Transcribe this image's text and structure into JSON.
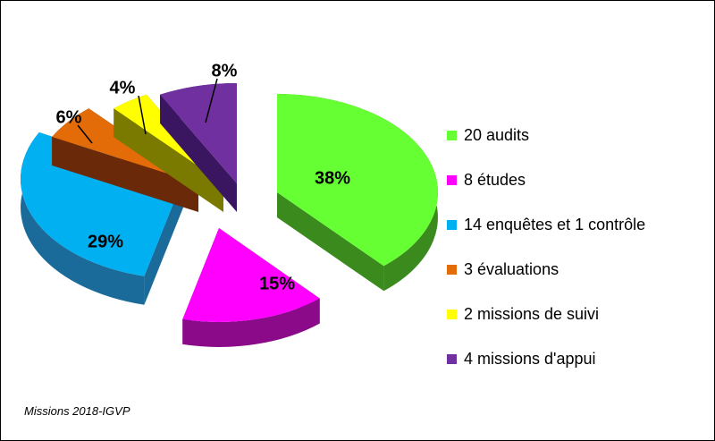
{
  "chart_data": {
    "type": "pie",
    "style": "3d-exploded",
    "title": "",
    "slices": [
      {
        "label": "20 audits",
        "value": 20,
        "percent_label": "38%",
        "color": "#66ff33",
        "side_color": "#3a8a1e"
      },
      {
        "label": "8 études",
        "value": 8,
        "percent_label": "15%",
        "color": "#ff00ff",
        "side_color": "#8a0a8a"
      },
      {
        "label": "14 enquêtes et 1 contrôle",
        "value": 15,
        "percent_label": "29%",
        "color": "#00b0f0",
        "side_color": "#1a6a9a"
      },
      {
        "label": "3 évaluations",
        "value": 3,
        "percent_label": "6%",
        "color": "#e36c09",
        "side_color": "#6a2a0a"
      },
      {
        "label": "2 missions de suivi",
        "value": 2,
        "percent_label": "4%",
        "color": "#ffff00",
        "side_color": "#7a7a00"
      },
      {
        "label": "4 missions d'appui",
        "value": 4,
        "percent_label": "8%",
        "color": "#7030a0",
        "side_color": "#3a1560"
      }
    ],
    "legend_position": "right"
  },
  "caption": "Missions 2018-IGVP"
}
